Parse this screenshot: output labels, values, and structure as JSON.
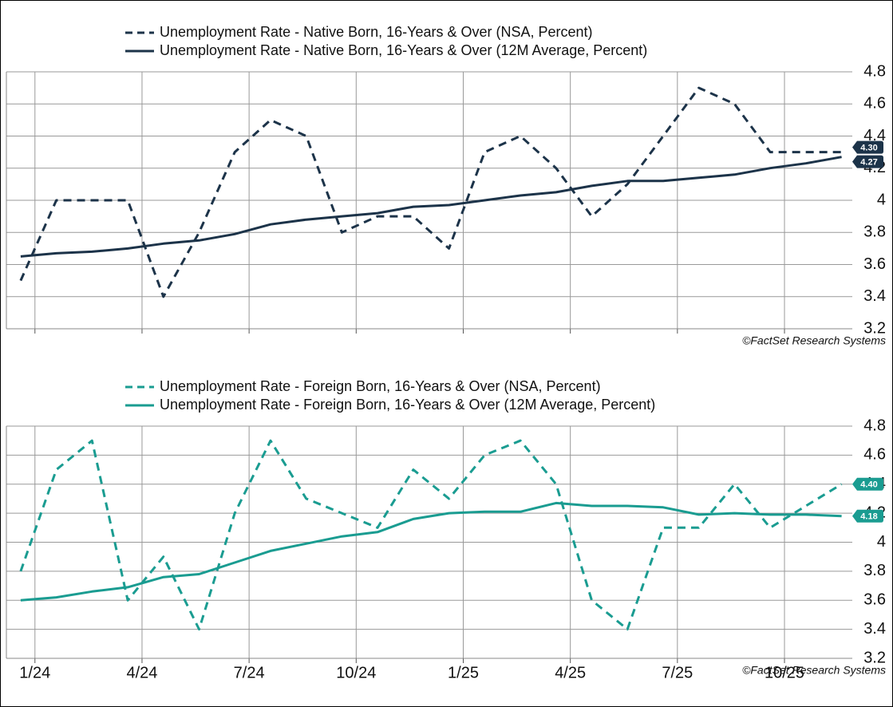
{
  "chart_data": [
    {
      "type": "line",
      "x": [
        0,
        1,
        2,
        3,
        4,
        5,
        6,
        7,
        8,
        9,
        10,
        11,
        12,
        13,
        14,
        15,
        16,
        17,
        18,
        19,
        20,
        21,
        22,
        23
      ],
      "xlim": [
        -0.4,
        23.3
      ],
      "xticks": [
        0.4,
        3.4,
        6.4,
        9.4,
        12.4,
        15.4,
        18.4,
        21.4
      ],
      "ylim": [
        3.2,
        4.8
      ],
      "yticks": [
        3.2,
        3.4,
        3.6,
        3.8,
        4,
        4.2,
        4.4,
        4.6,
        4.8
      ],
      "grid": true,
      "source": "©FactSet Research Systems",
      "series": [
        {
          "name": "Unemployment Rate - Native Born, 16-Years & Over (NSA, Percent)",
          "color": "#1c3349",
          "dashed": true,
          "values": [
            3.5,
            4.0,
            4.0,
            4.0,
            3.4,
            3.8,
            4.3,
            4.5,
            4.4,
            3.8,
            3.9,
            3.9,
            3.7,
            4.3,
            4.4,
            4.2,
            3.9,
            4.1,
            4.4,
            4.7,
            4.6,
            4.3,
            4.3,
            4.3
          ],
          "value_labels": [
            null,
            null,
            null,
            null,
            null,
            null,
            null,
            null,
            null,
            null,
            null,
            null,
            null,
            null,
            null,
            null,
            null,
            null,
            null,
            null,
            null,
            null,
            null,
            "4.30"
          ]
        },
        {
          "name": "Unemployment Rate - Native Born, 16-Years & Over (12M Average, Percent)",
          "color": "#1c3349",
          "dashed": false,
          "values": [
            3.65,
            3.67,
            3.68,
            3.7,
            3.73,
            3.75,
            3.79,
            3.85,
            3.88,
            3.9,
            3.92,
            3.96,
            3.97,
            4.0,
            4.03,
            4.05,
            4.09,
            4.12,
            4.12,
            4.14,
            4.16,
            4.2,
            4.23,
            4.27
          ],
          "value_labels": [
            null,
            null,
            null,
            null,
            null,
            null,
            null,
            null,
            null,
            null,
            null,
            null,
            null,
            null,
            null,
            null,
            null,
            null,
            null,
            null,
            null,
            null,
            null,
            "4.27"
          ]
        }
      ]
    },
    {
      "type": "line",
      "x": [
        0,
        1,
        2,
        3,
        4,
        5,
        6,
        7,
        8,
        9,
        10,
        11,
        12,
        13,
        14,
        15,
        16,
        17,
        18,
        19,
        20,
        21,
        22,
        23
      ],
      "xlim": [
        -0.4,
        23.3
      ],
      "xticks": [
        {
          "value": 0.4,
          "label": "1/24"
        },
        {
          "value": 3.4,
          "label": "4/24"
        },
        {
          "value": 6.4,
          "label": "7/24"
        },
        {
          "value": 9.4,
          "label": "10/24"
        },
        {
          "value": 12.4,
          "label": "1/25"
        },
        {
          "value": 15.4,
          "label": "4/25"
        },
        {
          "value": 18.4,
          "label": "7/25"
        },
        {
          "value": 21.4,
          "label": "10/25"
        }
      ],
      "ylim": [
        3.2,
        4.8
      ],
      "yticks": [
        3.2,
        3.4,
        3.6,
        3.8,
        4,
        4.2,
        4.4,
        4.6,
        4.8
      ],
      "grid": true,
      "source": "©FactSet Research Systems",
      "series": [
        {
          "name": "Unemployment Rate - Foreign Born, 16-Years & Over (NSA, Percent)",
          "color": "#1a9c91",
          "dashed": true,
          "values": [
            3.8,
            4.5,
            4.7,
            3.6,
            3.9,
            3.4,
            4.2,
            4.7,
            4.3,
            4.2,
            4.1,
            4.5,
            4.3,
            4.6,
            4.7,
            4.4,
            3.6,
            3.4,
            4.1,
            4.1,
            4.4,
            4.1,
            4.25,
            4.4
          ],
          "value_labels": [
            null,
            null,
            null,
            null,
            null,
            null,
            null,
            null,
            null,
            null,
            null,
            null,
            null,
            null,
            null,
            null,
            null,
            null,
            null,
            null,
            null,
            null,
            null,
            "4.40"
          ]
        },
        {
          "name": "Unemployment Rate - Foreign Born, 16-Years & Over (12M Average, Percent)",
          "color": "#1a9c91",
          "dashed": false,
          "values": [
            3.6,
            3.62,
            3.66,
            3.69,
            3.76,
            3.78,
            3.86,
            3.94,
            3.99,
            4.04,
            4.07,
            4.16,
            4.2,
            4.21,
            4.21,
            4.27,
            4.25,
            4.25,
            4.24,
            4.19,
            4.2,
            4.19,
            4.19,
            4.18
          ],
          "value_labels": [
            null,
            null,
            null,
            null,
            null,
            null,
            null,
            null,
            null,
            null,
            null,
            null,
            null,
            null,
            null,
            null,
            null,
            null,
            null,
            null,
            null,
            null,
            null,
            "4.18"
          ]
        }
      ]
    }
  ]
}
